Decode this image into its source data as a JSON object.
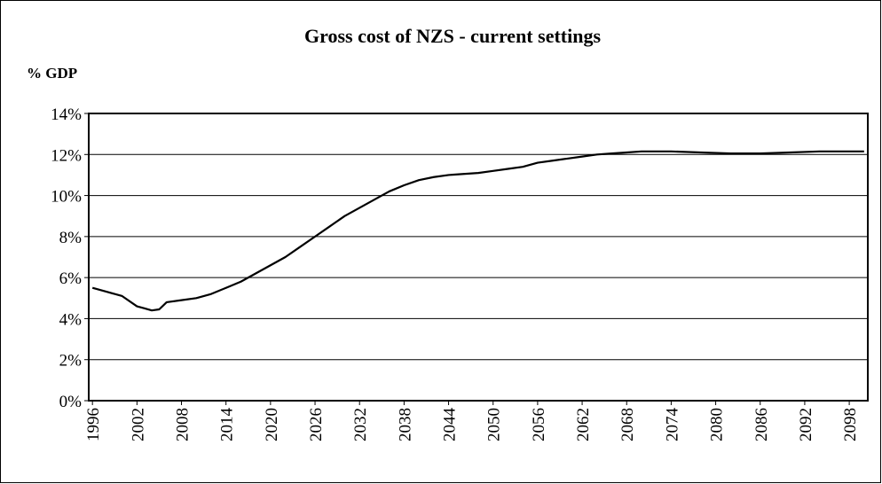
{
  "chart_data": {
    "type": "line",
    "title": "Gross cost of NZS - current settings",
    "y_label": "% GDP",
    "x": [
      1996,
      1998,
      2000,
      2002,
      2003,
      2004,
      2005,
      2006,
      2008,
      2010,
      2012,
      2014,
      2016,
      2018,
      2020,
      2022,
      2024,
      2026,
      2028,
      2030,
      2032,
      2034,
      2036,
      2038,
      2040,
      2042,
      2044,
      2046,
      2048,
      2050,
      2052,
      2054,
      2056,
      2058,
      2060,
      2062,
      2064,
      2066,
      2068,
      2070,
      2074,
      2078,
      2082,
      2086,
      2090,
      2094,
      2100
    ],
    "series": [
      {
        "name": "Gross cost",
        "color": "#000000",
        "values": [
          5.5,
          5.3,
          5.1,
          4.6,
          4.5,
          4.4,
          4.45,
          4.8,
          4.9,
          5.0,
          5.2,
          5.5,
          5.8,
          6.2,
          6.6,
          7.0,
          7.5,
          8.0,
          8.5,
          9.0,
          9.4,
          9.8,
          10.2,
          10.5,
          10.75,
          10.9,
          11.0,
          11.05,
          11.1,
          11.2,
          11.3,
          11.4,
          11.6,
          11.7,
          11.8,
          11.9,
          12.0,
          12.05,
          12.1,
          12.15,
          12.15,
          12.1,
          12.05,
          12.05,
          12.1,
          12.15,
          12.15
        ]
      }
    ],
    "xlim": [
      1995.5,
      2100.5
    ],
    "xticks": [
      1996,
      2002,
      2008,
      2014,
      2020,
      2026,
      2032,
      2038,
      2044,
      2050,
      2056,
      2062,
      2068,
      2074,
      2080,
      2086,
      2092,
      2098
    ],
    "ylim": [
      0,
      14
    ],
    "yticks": [
      {
        "value": 0,
        "label": "0%"
      },
      {
        "value": 2,
        "label": "2%"
      },
      {
        "value": 4,
        "label": "4%"
      },
      {
        "value": 6,
        "label": "6%"
      },
      {
        "value": 8,
        "label": "8%"
      },
      {
        "value": 10,
        "label": "10%"
      },
      {
        "value": 12,
        "label": "12%"
      },
      {
        "value": 14,
        "label": "14%"
      }
    ],
    "grid": true
  }
}
